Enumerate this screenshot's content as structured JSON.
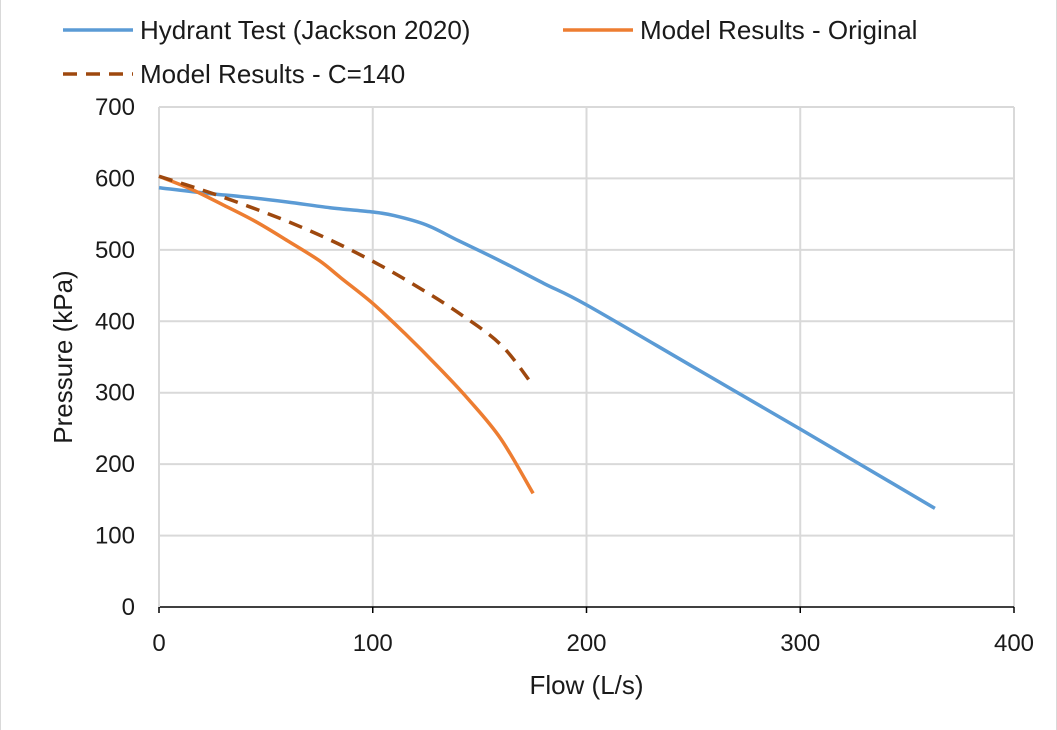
{
  "chart_data": {
    "type": "line",
    "xlabel": "Flow (L/s)",
    "ylabel": "Pressure (kPa)",
    "xlim": [
      0,
      400
    ],
    "ylim": [
      0,
      700
    ],
    "x_ticks": [
      0,
      100,
      200,
      300,
      400
    ],
    "y_ticks": [
      0,
      100,
      200,
      300,
      400,
      500,
      600,
      700
    ],
    "x_tick_labels": [
      "0",
      "100",
      "200",
      "300",
      "400"
    ],
    "y_tick_labels": [
      "0",
      "100",
      "200",
      "300",
      "400",
      "500",
      "600",
      "700"
    ],
    "grid": true,
    "legend_position": "top",
    "series": [
      {
        "name": "Hydrant Test (Jackson 2020)",
        "color": "#5B9BD5",
        "dash": "solid",
        "points": [
          [
            0,
            587
          ],
          [
            20,
            580
          ],
          [
            40,
            574
          ],
          [
            60,
            567
          ],
          [
            80,
            559
          ],
          [
            100,
            553
          ],
          [
            110,
            548
          ],
          [
            125,
            535
          ],
          [
            140,
            513
          ],
          [
            160,
            484
          ],
          [
            180,
            453
          ],
          [
            200,
            423
          ],
          [
            250,
            336
          ],
          [
            300,
            249
          ],
          [
            363,
            138
          ]
        ]
      },
      {
        "name": "Model Results - Original",
        "color": "#ED7D31",
        "dash": "solid",
        "points": [
          [
            0,
            603
          ],
          [
            15,
            585
          ],
          [
            30,
            563
          ],
          [
            45,
            540
          ],
          [
            60,
            513
          ],
          [
            75,
            485
          ],
          [
            85,
            461
          ],
          [
            100,
            425
          ],
          [
            115,
            383
          ],
          [
            130,
            338
          ],
          [
            145,
            290
          ],
          [
            160,
            235
          ],
          [
            175,
            159
          ]
        ]
      },
      {
        "name": "Model Results - C=140",
        "color": "#9E480E",
        "dash": "dashed",
        "points": [
          [
            0,
            603
          ],
          [
            20,
            584
          ],
          [
            40,
            563
          ],
          [
            60,
            540
          ],
          [
            80,
            514
          ],
          [
            100,
            484
          ],
          [
            120,
            450
          ],
          [
            140,
            412
          ],
          [
            160,
            367
          ],
          [
            175,
            310
          ]
        ]
      }
    ]
  }
}
